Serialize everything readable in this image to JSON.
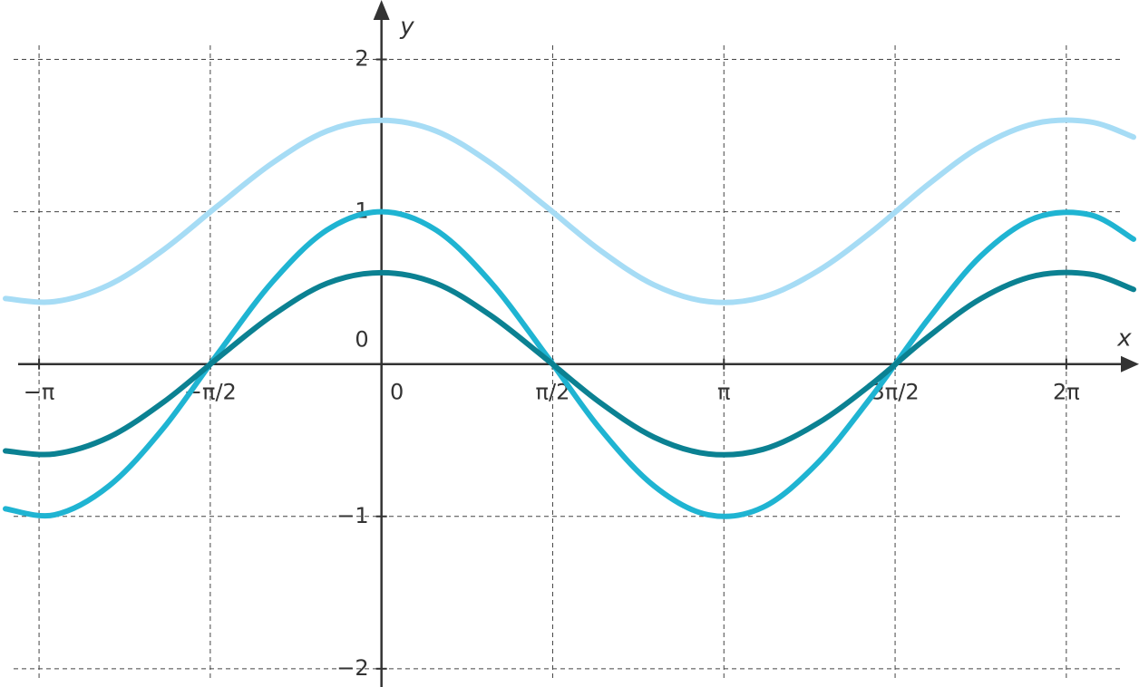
{
  "chart_data": {
    "type": "line",
    "x_label": "x",
    "y_label": "y",
    "x": [
      -3.45,
      -3,
      -2.5,
      -2,
      -1.5,
      -1,
      -0.5,
      0,
      0.5,
      1,
      1.5,
      2,
      2.5,
      3,
      3.5,
      4,
      4.5,
      5,
      5.5,
      6,
      6.5,
      6.9
    ],
    "series": [
      {
        "color": "#a6dcf5",
        "values": [
          0.43,
          0.41,
          0.52,
          0.75,
          1.04,
          1.32,
          1.53,
          1.6,
          1.53,
          1.32,
          1.04,
          0.75,
          0.52,
          0.41,
          0.44,
          0.61,
          0.87,
          1.17,
          1.43,
          1.58,
          1.59,
          1.49
        ]
      },
      {
        "color": "#1fb4d2",
        "values": [
          -0.95,
          -0.99,
          -0.8,
          -0.42,
          0.07,
          0.54,
          0.88,
          1,
          0.88,
          0.54,
          0.07,
          -0.42,
          -0.8,
          -0.99,
          -0.94,
          -0.65,
          -0.21,
          0.28,
          0.71,
          0.96,
          0.98,
          0.82
        ]
      },
      {
        "color": "#0b8192",
        "values": [
          -0.57,
          -0.59,
          -0.48,
          -0.25,
          0.04,
          0.32,
          0.53,
          0.6,
          0.53,
          0.32,
          0.04,
          -0.25,
          -0.48,
          -0.59,
          -0.56,
          -0.39,
          -0.13,
          0.17,
          0.43,
          0.58,
          0.59,
          0.49
        ]
      }
    ],
    "xlim": [
      -3.5,
      6.95
    ],
    "ylim": [
      -2.12,
      2.39
    ],
    "xticks": [
      {
        "value": -3.1416,
        "label": "−π"
      },
      {
        "value": -1.5708,
        "label": "−π/2"
      },
      0,
      {
        "value": 1.5708,
        "label": "π/2"
      },
      {
        "value": 3.1416,
        "label": "π"
      },
      {
        "value": 4.7124,
        "label": "3π/2"
      },
      {
        "value": 6.2832,
        "label": "2π"
      }
    ],
    "yticks": [
      {
        "value": -2,
        "label": "−2"
      },
      {
        "value": -1,
        "label": "−1"
      },
      0,
      1,
      2
    ],
    "grid": true
  }
}
